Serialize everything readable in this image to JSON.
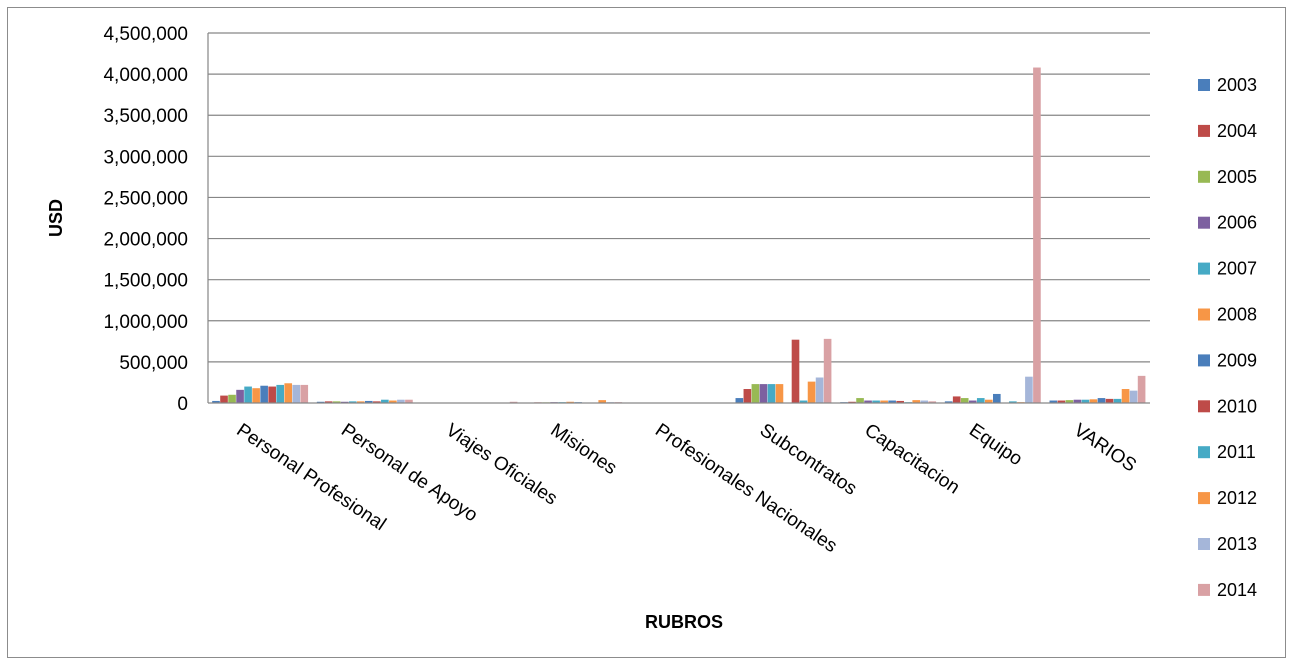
{
  "chart_data": {
    "type": "bar",
    "title": "",
    "xlabel": "RUBROS",
    "ylabel": "USD",
    "ylim": [
      0,
      4500000
    ],
    "yticks": [
      0,
      500000,
      1000000,
      1500000,
      2000000,
      2500000,
      3000000,
      3500000,
      4000000,
      4500000
    ],
    "ytick_labels": [
      "0",
      "500,000",
      "1,000,000",
      "1,500,000",
      "2,000,000",
      "2,500,000",
      "3,000,000",
      "3,500,000",
      "4,000,000",
      "4,500,000"
    ],
    "grid": true,
    "legend_position": "right",
    "categories": [
      "Personal Profesional",
      "Personal de Apoyo",
      "Viajes Oficiales",
      "Misiones",
      "Profesionales Nacionales",
      "Subcontratos",
      "Capacitacion",
      "Equipo",
      "VARIOS"
    ],
    "series": [
      {
        "name": "2003",
        "color": "#4a7ebb",
        "values": [
          25000,
          15000,
          0,
          5000,
          0,
          60000,
          10000,
          20000,
          30000
        ]
      },
      {
        "name": "2004",
        "color": "#be4b48",
        "values": [
          90000,
          20000,
          0,
          8000,
          0,
          170000,
          15000,
          80000,
          30000
        ]
      },
      {
        "name": "2005",
        "color": "#98b954",
        "values": [
          100000,
          20000,
          0,
          8000,
          0,
          230000,
          60000,
          60000,
          35000
        ]
      },
      {
        "name": "2006",
        "color": "#7d60a0",
        "values": [
          160000,
          15000,
          0,
          10000,
          0,
          230000,
          30000,
          30000,
          40000
        ]
      },
      {
        "name": "2007",
        "color": "#46aac5",
        "values": [
          200000,
          20000,
          0,
          10000,
          0,
          230000,
          30000,
          60000,
          40000
        ]
      },
      {
        "name": "2008",
        "color": "#f79646",
        "values": [
          180000,
          20000,
          0,
          15000,
          0,
          230000,
          30000,
          40000,
          45000
        ]
      },
      {
        "name": "2009",
        "color": "#4a7ebb",
        "values": [
          210000,
          25000,
          0,
          10000,
          0,
          0,
          30000,
          110000,
          60000
        ]
      },
      {
        "name": "2010",
        "color": "#be4b48",
        "values": [
          200000,
          20000,
          0,
          5000,
          0,
          770000,
          25000,
          0,
          50000
        ]
      },
      {
        "name": "2011",
        "color": "#46aac5",
        "values": [
          220000,
          40000,
          0,
          5000,
          0,
          30000,
          10000,
          20000,
          50000
        ]
      },
      {
        "name": "2012",
        "color": "#f79646",
        "values": [
          240000,
          30000,
          0,
          35000,
          0,
          260000,
          35000,
          10000,
          170000
        ]
      },
      {
        "name": "2013",
        "color": "#a5b6d9",
        "values": [
          220000,
          40000,
          5000,
          10000,
          0,
          310000,
          30000,
          320000,
          150000
        ]
      },
      {
        "name": "2014",
        "color": "#d9a1a4",
        "values": [
          220000,
          40000,
          15000,
          10000,
          0,
          780000,
          20000,
          4080000,
          330000
        ]
      }
    ]
  }
}
